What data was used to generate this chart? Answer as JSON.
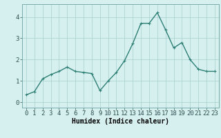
{
  "x": [
    0,
    1,
    2,
    3,
    4,
    5,
    6,
    7,
    8,
    9,
    10,
    11,
    12,
    13,
    14,
    15,
    16,
    17,
    18,
    19,
    20,
    21,
    22,
    23
  ],
  "y": [
    0.35,
    0.5,
    1.1,
    1.3,
    1.45,
    1.65,
    1.45,
    1.4,
    1.35,
    0.55,
    1.0,
    1.4,
    1.95,
    2.75,
    3.7,
    3.7,
    4.2,
    3.4,
    2.55,
    2.8,
    2.0,
    1.55,
    1.45,
    1.45
  ],
  "xlabel": "Humidex (Indice chaleur)",
  "line_color": "#2e7f74",
  "bg_color": "#d6f0f0",
  "grid_color": "#a8cece",
  "ylim": [
    -0.25,
    4.6
  ],
  "xlim": [
    -0.5,
    23.5
  ],
  "yticks": [
    0,
    1,
    2,
    3,
    4
  ],
  "xticks": [
    0,
    1,
    2,
    3,
    4,
    5,
    6,
    7,
    8,
    9,
    10,
    11,
    12,
    13,
    14,
    15,
    16,
    17,
    18,
    19,
    20,
    21,
    22,
    23
  ],
  "xlabel_fontsize": 7,
  "tick_fontsize": 6.5,
  "line_width": 1.0,
  "marker_size": 2.5
}
